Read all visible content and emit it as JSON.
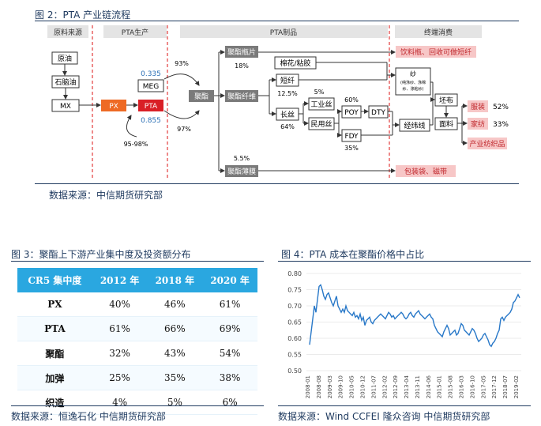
{
  "fig2": {
    "title": "图 2：PTA 产业链流程",
    "sections": [
      "原料来源",
      "PTA生产",
      "PTA制品",
      "终端消费"
    ],
    "nodes": {
      "crude": "原油",
      "naphtha": "石脑油",
      "mx": "MX",
      "px": "PX",
      "pta": "PTA",
      "meg": "MEG",
      "polyester": "聚酯",
      "bottle_chip": "聚酯瓶片",
      "fiber": "聚酯纤维",
      "film": "聚酯薄膜",
      "cotton_glue": "棉花/粘胶",
      "staple": "短纤",
      "filament": "长丝",
      "industrial_yarn": "工业丝",
      "civil_yarn": "民用丝",
      "poy": "POY",
      "fdy": "FDY",
      "dty": "DTY",
      "yarn": "纱",
      "yarn_detail_1": "(纯涤纱、涤棉",
      "yarn_detail_2": "纱、涤粘纱)",
      "grey_cloth": "坯布",
      "fabric": "面料",
      "weft": "经纬线",
      "apparel": "服装",
      "home_textile": "家纺",
      "industrial_textile": "产业纺织品",
      "bottle_use": "饮料瓶、回收可做短纤",
      "film_use": "包装袋、磁带"
    },
    "values": {
      "meg_ratio": "0.335",
      "pta_ratio": "0.855",
      "px_pct": "95-98%",
      "to_polyester_pct": "93%",
      "from_polyester_pct": "97%",
      "bottle_pct": "18%",
      "film_pct": "5.5%",
      "staple_pct": "12.5%",
      "filament_pct": "64%",
      "industrial_pct": "5%",
      "poy_pct": "60%",
      "fdy_pct": "35%",
      "apparel_pct": "52%",
      "home_pct": "33%"
    },
    "source": "数据来源：中信期货研究部"
  },
  "fig3": {
    "title": "图 3：聚酯上下游产业集中度及投资额分布",
    "headers": [
      "CR5 集中度",
      "2012 年",
      "2018 年",
      "2020 年"
    ],
    "rows": [
      {
        "name": "PX",
        "v": [
          "40%",
          "46%",
          "61%"
        ]
      },
      {
        "name": "PTA",
        "v": [
          "61%",
          "66%",
          "69%"
        ]
      },
      {
        "name": "聚酯",
        "v": [
          "32%",
          "43%",
          "54%"
        ]
      },
      {
        "name": "加弹",
        "v": [
          "25%",
          "35%",
          "38%"
        ]
      },
      {
        "name": "织造",
        "v": [
          "4%",
          "5%",
          "6%"
        ]
      }
    ],
    "source": "数据来源：恒逸石化  中信期货研究部"
  },
  "fig4": {
    "title": "图 4：PTA 成本在聚酯价格中占比",
    "source": "数据来源：Wind CCFEI  隆众咨询  中信期货研究部",
    "chart_data": {
      "type": "line",
      "title": "",
      "xlabel": "",
      "ylabel": "",
      "ylim": [
        0.5,
        0.8
      ],
      "yticks": [
        "0.50",
        "0.55",
        "0.60",
        "0.65",
        "0.70",
        "0.75",
        "0.80"
      ],
      "xticks": [
        "2008-01",
        "2008-08",
        "2009-03",
        "2009-10",
        "2010-05",
        "2010-12",
        "2011-07",
        "2012-02",
        "2012-09",
        "2013-04",
        "2013-11",
        "2014-06",
        "2015-01",
        "2015-08",
        "2016-03",
        "2016-10",
        "2017-05",
        "2017-12",
        "2018-07",
        "2019-02"
      ],
      "color": "#2878c8",
      "series": [
        {
          "values": [
            0.58,
            0.62,
            0.66,
            0.7,
            0.68,
            0.72,
            0.76,
            0.765,
            0.75,
            0.73,
            0.72,
            0.735,
            0.74,
            0.725,
            0.71,
            0.7,
            0.715,
            0.73,
            0.7,
            0.69,
            0.68,
            0.69,
            0.68,
            0.7,
            0.685,
            0.68,
            0.675,
            0.67,
            0.68,
            0.665,
            0.67,
            0.66,
            0.675,
            0.655,
            0.665,
            0.64,
            0.655,
            0.66,
            0.665,
            0.65,
            0.645,
            0.655,
            0.66,
            0.665,
            0.67,
            0.675,
            0.67,
            0.665,
            0.66,
            0.67,
            0.68,
            0.675,
            0.665,
            0.67,
            0.66,
            0.665,
            0.67,
            0.675,
            0.68,
            0.675,
            0.665,
            0.66,
            0.665,
            0.675,
            0.68,
            0.67,
            0.665,
            0.675,
            0.68,
            0.685,
            0.675,
            0.67,
            0.665,
            0.66,
            0.665,
            0.67,
            0.675,
            0.665,
            0.66,
            0.64,
            0.63,
            0.62,
            0.615,
            0.61,
            0.605,
            0.62,
            0.63,
            0.64,
            0.63,
            0.61,
            0.615,
            0.62,
            0.625,
            0.61,
            0.615,
            0.63,
            0.645,
            0.64,
            0.625,
            0.62,
            0.615,
            0.61,
            0.62,
            0.63,
            0.625,
            0.615,
            0.6,
            0.59,
            0.595,
            0.6,
            0.61,
            0.615,
            0.605,
            0.595,
            0.58,
            0.575,
            0.585,
            0.59,
            0.6,
            0.615,
            0.625,
            0.66,
            0.665,
            0.655,
            0.665,
            0.67,
            0.675,
            0.68,
            0.69,
            0.71,
            0.715,
            0.725,
            0.735,
            0.725
          ]
        }
      ]
    }
  }
}
